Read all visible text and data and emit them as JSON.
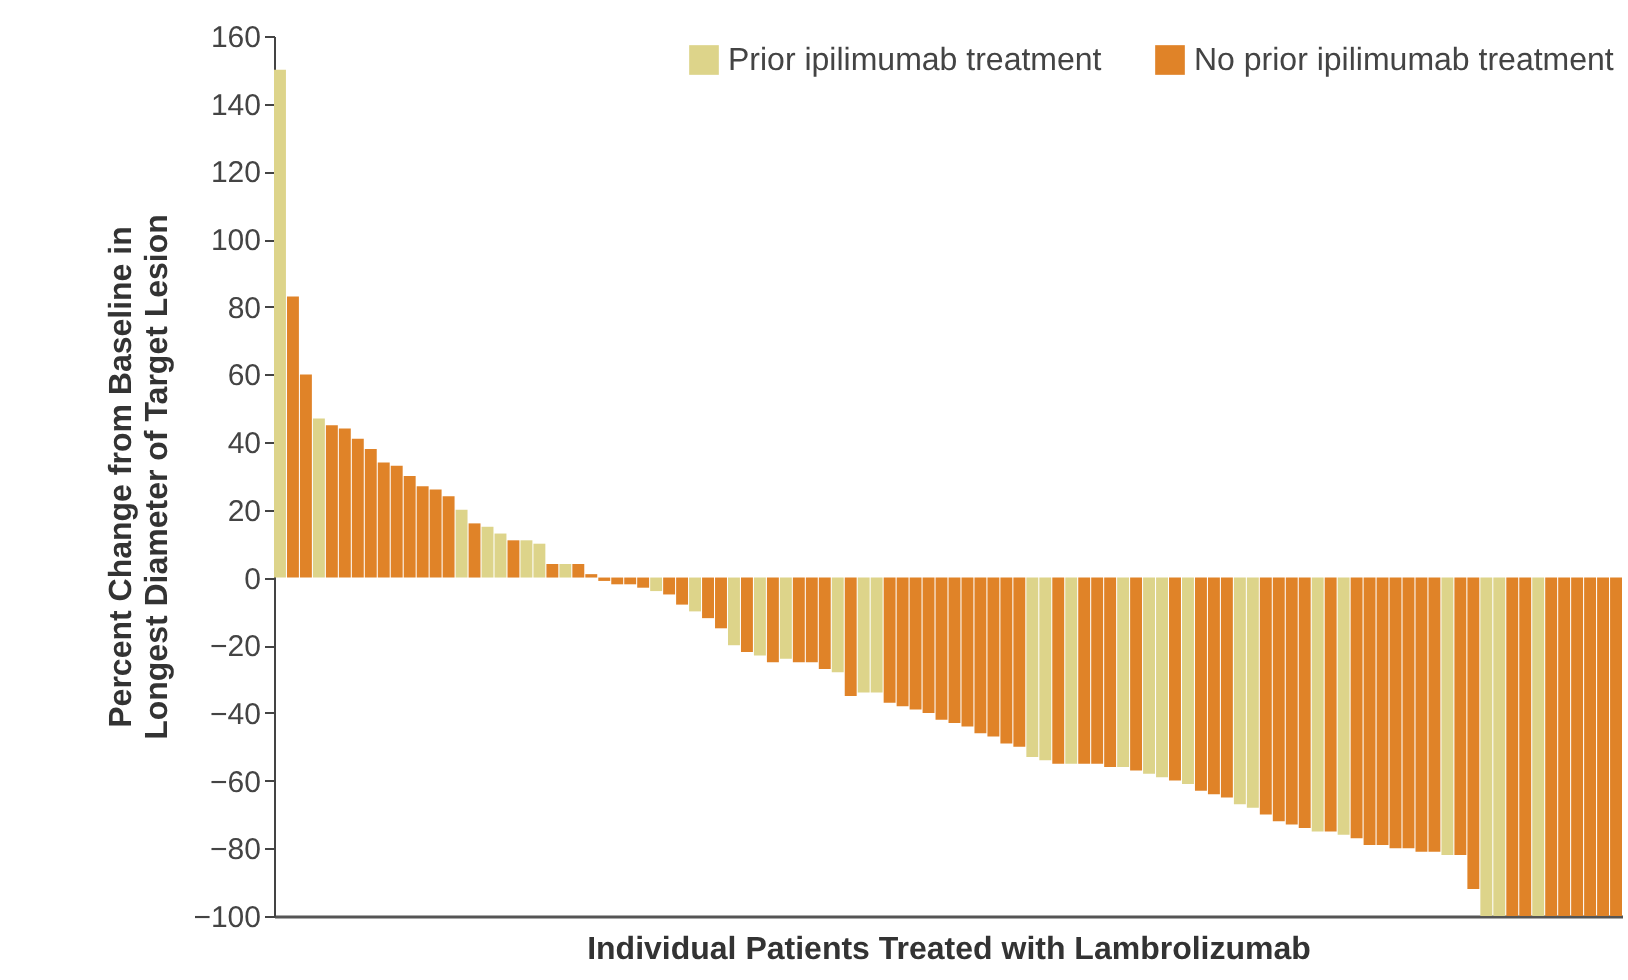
{
  "chart_data": {
    "type": "bar",
    "xlabel": "Individual Patients Treated with Lambrolizumab",
    "ylabel": "Percent Change from Baseline in Longest Diameter of Target Lesion",
    "categories": [
      null,
      null,
      null,
      null,
      null,
      null,
      null,
      null,
      null,
      null,
      null,
      null,
      null,
      null,
      null,
      null,
      null,
      null,
      null,
      null,
      null,
      null,
      null,
      null,
      null,
      null,
      null,
      null,
      null,
      null,
      null,
      null,
      null,
      null,
      null,
      null,
      null,
      null,
      null,
      null,
      null,
      null,
      null,
      null,
      null,
      null,
      null,
      null,
      null,
      null,
      null,
      null,
      null,
      null,
      null,
      null,
      null,
      null,
      null,
      null,
      null,
      null,
      null,
      null,
      null,
      null,
      null,
      null,
      null,
      null,
      null,
      null,
      null,
      null,
      null,
      null,
      null,
      null,
      null,
      null,
      null,
      null,
      null,
      null,
      null,
      null,
      null,
      null,
      null,
      null,
      null,
      null,
      null,
      null,
      null,
      null,
      null,
      null,
      null,
      null,
      null,
      null,
      null,
      null
    ],
    "series": [
      {
        "name": "Prior ipilimumab treatment",
        "color": "#ddd48a",
        "values": [
          150,
          null,
          null,
          47,
          null,
          null,
          null,
          null,
          null,
          null,
          null,
          null,
          null,
          null,
          20,
          null,
          15,
          13,
          null,
          11,
          10,
          null,
          4,
          null,
          null,
          null,
          null,
          null,
          null,
          -4,
          null,
          null,
          -10,
          null,
          null,
          -20,
          null,
          -23,
          null,
          -24,
          null,
          null,
          null,
          -28,
          null,
          -34,
          -34,
          null,
          null,
          null,
          null,
          null,
          null,
          null,
          null,
          null,
          null,
          null,
          -53,
          -54,
          null,
          -55,
          null,
          null,
          null,
          -56,
          null,
          -58,
          -59,
          null,
          -61,
          null,
          null,
          null,
          -67,
          -68,
          null,
          null,
          null,
          null,
          -75,
          null,
          -76,
          null,
          null,
          null,
          null,
          null,
          null,
          null,
          -82,
          null,
          null,
          -100,
          -100,
          null,
          null,
          -100,
          null,
          null,
          null,
          null,
          null,
          null
        ]
      },
      {
        "name": "No prior ipilimumab treatment",
        "color": "#e08328",
        "values": [
          null,
          83,
          60,
          null,
          45,
          44,
          41,
          38,
          34,
          33,
          30,
          27,
          26,
          24,
          null,
          16,
          null,
          null,
          11,
          null,
          null,
          4,
          null,
          4,
          1,
          -1,
          -2,
          -2,
          -3,
          null,
          -5,
          -8,
          null,
          -12,
          -15,
          null,
          -22,
          null,
          -25,
          null,
          -25,
          -25,
          -27,
          null,
          -35,
          null,
          null,
          -37,
          -38,
          -39,
          -40,
          -42,
          -43,
          -44,
          -46,
          -47,
          -49,
          -50,
          null,
          null,
          -55,
          null,
          -55,
          -55,
          -56,
          null,
          -57,
          null,
          null,
          -60,
          null,
          -63,
          -64,
          -65,
          null,
          null,
          -70,
          -72,
          -73,
          -74,
          null,
          -75,
          null,
          -77,
          -79,
          -79,
          -80,
          -80,
          -81,
          -81,
          null,
          -82,
          -92,
          null,
          null,
          -100,
          -100,
          null,
          -100,
          -100,
          -100,
          -100,
          -100,
          -100
        ]
      }
    ],
    "ylim": [
      -100,
      160
    ],
    "yticks": [
      -100,
      -80,
      -60,
      -40,
      -20,
      0,
      20,
      40,
      60,
      80,
      100,
      120,
      140,
      160
    ],
    "legend": "top right",
    "tick_labels": "y"
  }
}
